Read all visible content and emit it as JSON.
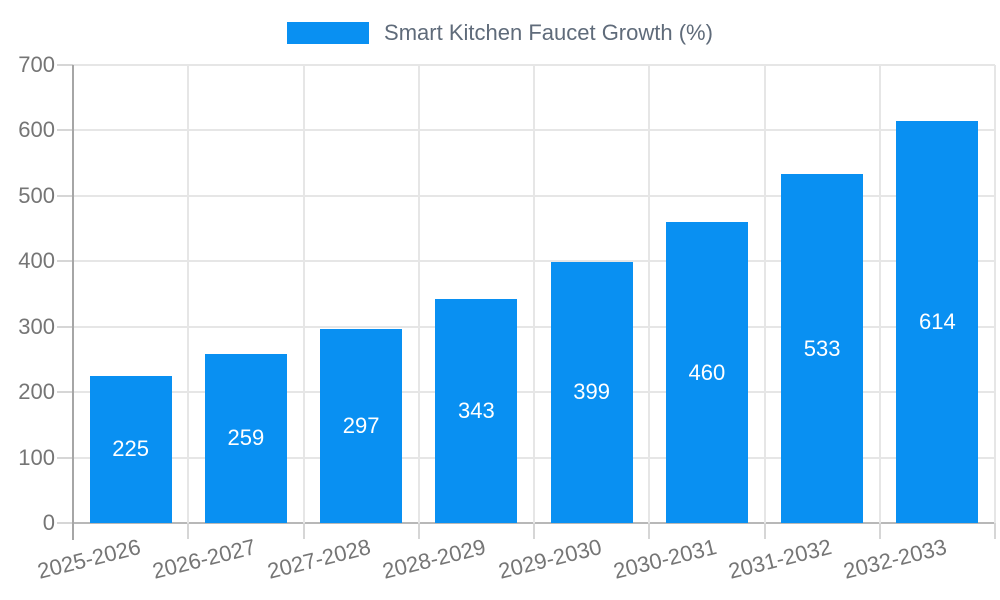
{
  "legend": {
    "label": "Smart Kitchen Faucet Growth (%)"
  },
  "chart_data": {
    "type": "bar",
    "title": "",
    "xlabel": "",
    "ylabel": "",
    "legend_position": "top",
    "grid": true,
    "categories": [
      "2025-2026",
      "2026-2027",
      "2027-2028",
      "2028-2029",
      "2029-2030",
      "2030-2031",
      "2031-2032",
      "2032-2033"
    ],
    "series": [
      {
        "name": "Smart Kitchen Faucet Growth (%)",
        "values": [
          225,
          259,
          297,
          343,
          399,
          460,
          533,
          614
        ]
      }
    ],
    "value_labels_shown": true,
    "ylim": [
      0,
      700
    ],
    "ytick_step": 100,
    "yticks": [
      "0",
      "100",
      "200",
      "300",
      "400",
      "500",
      "600",
      "700"
    ],
    "x_tick_rotation_deg": -14,
    "colors": {
      "bar": "#0990F2",
      "value_label": "#FFFFFF",
      "axis_label": "#757575",
      "legend_text": "#5F6B7A",
      "gridline": "#E6E6E6",
      "y_axis_line": "#A6A6A6",
      "x_axis_line": "#B8B8B8",
      "tick": "#D6D6D6",
      "background": "#FFFFFF"
    }
  }
}
